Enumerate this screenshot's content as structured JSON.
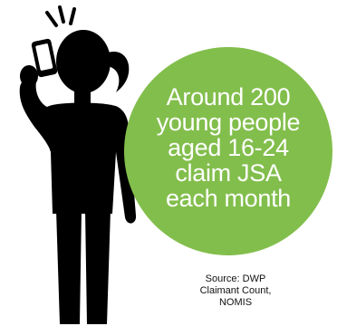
{
  "colors": {
    "silhouette": "#000000",
    "bubble": "#82be4c",
    "bubble_text": "#ffffff",
    "phone_screen": "#ffffff"
  },
  "icons": [
    "woman-on-phone-icon",
    "call-signal-icon"
  ],
  "bubble": {
    "lines": [
      "Around 200",
      "young people",
      "aged 16-24",
      "claim JSA",
      "each month"
    ]
  },
  "source": {
    "lines": [
      "Source: DWP",
      "Claimant Count,",
      "NOMIS"
    ]
  }
}
